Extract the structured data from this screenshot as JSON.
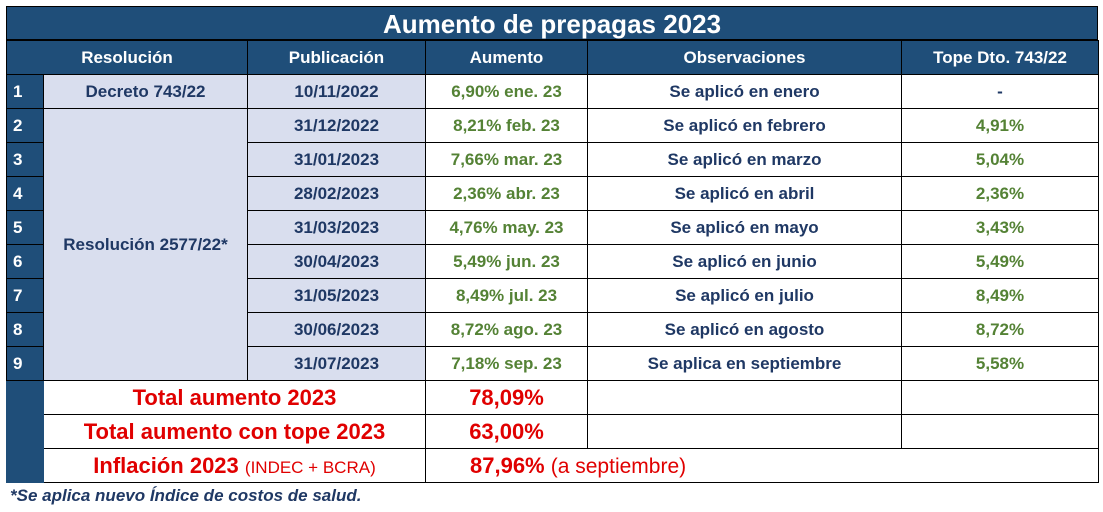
{
  "title": "Aumento de prepagas 2023",
  "headers": {
    "resolucion": "Resolución",
    "publicacion": "Publicación",
    "aumento": "Aumento",
    "observaciones": "Observaciones",
    "tope": "Tope Dto. 743/22"
  },
  "rows": [
    {
      "n": "1",
      "resolucion": "Decreto 743/22",
      "publicacion": "10/11/2022",
      "aumento": "6,90% ene. 23",
      "observaciones": "Se aplicó en enero",
      "tope": "-"
    },
    {
      "n": "2",
      "resolucion": "Resolución 2577/22*",
      "publicacion": "31/12/2022",
      "aumento": "8,21% feb. 23",
      "observaciones": "Se aplicó en febrero",
      "tope": "4,91%"
    },
    {
      "n": "3",
      "publicacion": "31/01/2023",
      "aumento": "7,66% mar. 23",
      "observaciones": "Se aplicó en marzo",
      "tope": "5,04%"
    },
    {
      "n": "4",
      "publicacion": "28/02/2023",
      "aumento": "2,36% abr. 23",
      "observaciones": "Se aplicó en abril",
      "tope": "2,36%"
    },
    {
      "n": "5",
      "publicacion": "31/03/2023",
      "aumento": "4,76% may. 23",
      "observaciones": "Se aplicó en mayo",
      "tope": "3,43%"
    },
    {
      "n": "6",
      "publicacion": "30/04/2023",
      "aumento": "5,49% jun. 23",
      "observaciones": "Se aplicó en junio",
      "tope": "5,49%"
    },
    {
      "n": "7",
      "publicacion": "31/05/2023",
      "aumento": "8,49% jul. 23",
      "observaciones": "Se aplicó en julio",
      "tope": "8,49%"
    },
    {
      "n": "8",
      "publicacion": "30/06/2023",
      "aumento": "8,72% ago. 23",
      "observaciones": "Se aplicó en agosto",
      "tope": "8,72%"
    },
    {
      "n": "9",
      "publicacion": "31/07/2023",
      "aumento": "7,18% sep. 23",
      "observaciones": "Se aplica en septiembre",
      "tope": "5,58%"
    }
  ],
  "totals": {
    "total_label": "Total aumento 2023",
    "total_value": "78,09%",
    "tope_label": "Total aumento con tope 2023",
    "tope_value": "63,00%",
    "inflacion_label": "Inflación 2023",
    "inflacion_source": "(INDEC + BCRA)",
    "inflacion_value": "87,96%",
    "inflacion_note": "(a septiembre)"
  },
  "footnote": "*Se aplica nuevo Índice de costos de salud.",
  "colors": {
    "header_bg": "#1F4E79",
    "shaded_bg": "#D9DEEE",
    "green_text": "#548235",
    "blue_text": "#1F3864",
    "red_text": "#E00000"
  }
}
